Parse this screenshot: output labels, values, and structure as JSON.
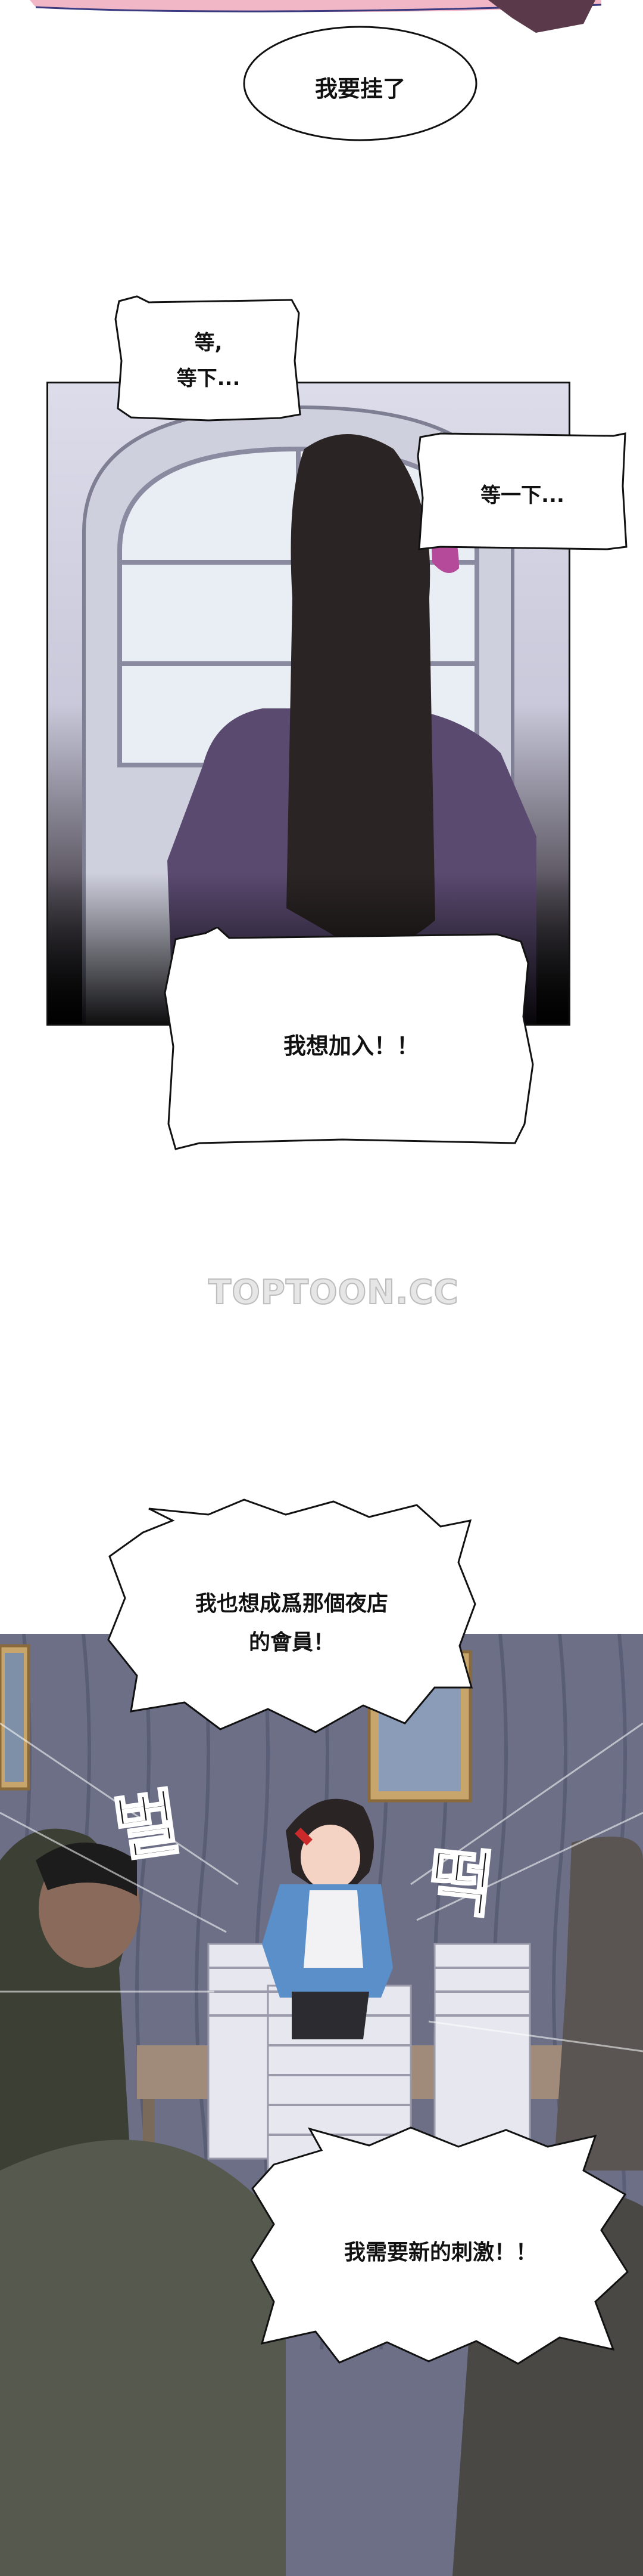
{
  "bubbles": {
    "hangup": "我要挂了",
    "wait_line1": "等,",
    "wait_line2": "等下...",
    "wait_one": "等一下...",
    "join": "我想加入！！",
    "member_line1": "我也想成爲那個夜店",
    "member_line2": "的會員！",
    "stimulus": "我需要新的刺激！！"
  },
  "sfx": {
    "left": "벌",
    "right": "떡"
  },
  "watermark": "TOPTOON.CC",
  "colors": {
    "wall": "#6c6f86",
    "jacket": "#5b8fc9",
    "hair": "#2b2424"
  }
}
